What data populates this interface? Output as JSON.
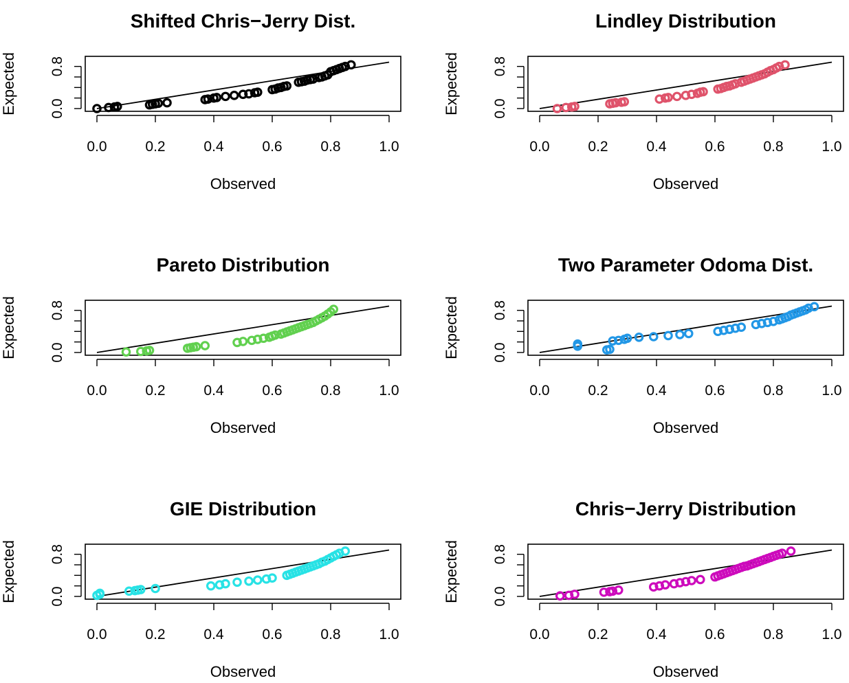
{
  "chart_data": [
    {
      "type": "scatter",
      "title": "Shifted Chris−Jerry Dist.",
      "xlabel": "Observed",
      "ylabel": "Expected",
      "xlim": [
        0.0,
        1.0
      ],
      "ylim": [
        0.0,
        0.9
      ],
      "xticks": [
        "0.0",
        "0.2",
        "0.4",
        "0.6",
        "0.8",
        "1.0"
      ],
      "yticks": [
        "0.0",
        "0.8"
      ],
      "grid": false,
      "color": "#000000",
      "reference_line": {
        "from": [
          0.0,
          0.0
        ],
        "to": [
          1.0,
          0.88
        ]
      },
      "series": [
        {
          "x": [
            0.0,
            0.04,
            0.06,
            0.07,
            0.18,
            0.19,
            0.2,
            0.21,
            0.24,
            0.37,
            0.38,
            0.4,
            0.41,
            0.44,
            0.47,
            0.5,
            0.52,
            0.54,
            0.55,
            0.6,
            0.61,
            0.62,
            0.63,
            0.64,
            0.65,
            0.69,
            0.7,
            0.71,
            0.72,
            0.73,
            0.74,
            0.76,
            0.77,
            0.78,
            0.79,
            0.8,
            0.81,
            0.82,
            0.83,
            0.84,
            0.85,
            0.87
          ],
          "y": [
            0.0,
            0.02,
            0.03,
            0.04,
            0.07,
            0.08,
            0.09,
            0.1,
            0.11,
            0.17,
            0.18,
            0.2,
            0.21,
            0.23,
            0.25,
            0.27,
            0.28,
            0.3,
            0.31,
            0.36,
            0.37,
            0.39,
            0.4,
            0.42,
            0.43,
            0.5,
            0.51,
            0.52,
            0.54,
            0.55,
            0.56,
            0.59,
            0.6,
            0.62,
            0.64,
            0.7,
            0.72,
            0.74,
            0.76,
            0.78,
            0.8,
            0.83
          ]
        }
      ]
    },
    {
      "type": "scatter",
      "title": "Lindley Distribution",
      "xlabel": "Observed",
      "ylabel": "Expected",
      "xlim": [
        0.0,
        1.0
      ],
      "ylim": [
        0.0,
        0.9
      ],
      "xticks": [
        "0.0",
        "0.2",
        "0.4",
        "0.6",
        "0.8",
        "1.0"
      ],
      "yticks": [
        "0.0",
        "0.8"
      ],
      "grid": false,
      "color": "#DF536B",
      "reference_line": {
        "from": [
          0.0,
          0.0
        ],
        "to": [
          1.0,
          0.88
        ]
      },
      "series": [
        {
          "x": [
            0.06,
            0.09,
            0.11,
            0.12,
            0.24,
            0.25,
            0.26,
            0.28,
            0.29,
            0.41,
            0.43,
            0.44,
            0.47,
            0.5,
            0.52,
            0.54,
            0.55,
            0.56,
            0.61,
            0.62,
            0.63,
            0.64,
            0.65,
            0.66,
            0.67,
            0.69,
            0.7,
            0.71,
            0.72,
            0.73,
            0.74,
            0.75,
            0.76,
            0.77,
            0.78,
            0.79,
            0.8,
            0.81,
            0.82,
            0.84
          ],
          "y": [
            0.0,
            0.02,
            0.03,
            0.04,
            0.09,
            0.1,
            0.11,
            0.12,
            0.13,
            0.18,
            0.2,
            0.21,
            0.23,
            0.25,
            0.27,
            0.29,
            0.31,
            0.32,
            0.37,
            0.38,
            0.4,
            0.42,
            0.43,
            0.45,
            0.47,
            0.5,
            0.52,
            0.54,
            0.56,
            0.58,
            0.6,
            0.62,
            0.64,
            0.66,
            0.69,
            0.72,
            0.74,
            0.77,
            0.8,
            0.83
          ]
        }
      ]
    },
    {
      "type": "scatter",
      "title": "Pareto Distribution",
      "xlabel": "Observed",
      "ylabel": "Expected",
      "xlim": [
        0.0,
        1.0
      ],
      "ylim": [
        0.0,
        0.9
      ],
      "xticks": [
        "0.0",
        "0.2",
        "0.4",
        "0.6",
        "0.8",
        "1.0"
      ],
      "yticks": [
        "0.0",
        "0.8"
      ],
      "grid": false,
      "color": "#61D04F",
      "reference_line": {
        "from": [
          0.0,
          0.0
        ],
        "to": [
          1.0,
          0.88
        ]
      },
      "series": [
        {
          "x": [
            0.1,
            0.15,
            0.17,
            0.18,
            0.31,
            0.32,
            0.33,
            0.34,
            0.37,
            0.48,
            0.5,
            0.53,
            0.55,
            0.57,
            0.59,
            0.6,
            0.61,
            0.63,
            0.64,
            0.65,
            0.66,
            0.67,
            0.68,
            0.69,
            0.7,
            0.71,
            0.72,
            0.73,
            0.74,
            0.75,
            0.76,
            0.77,
            0.78,
            0.79,
            0.8,
            0.81
          ],
          "y": [
            0.01,
            0.02,
            0.03,
            0.04,
            0.08,
            0.09,
            0.1,
            0.11,
            0.13,
            0.19,
            0.21,
            0.23,
            0.25,
            0.27,
            0.29,
            0.31,
            0.33,
            0.35,
            0.37,
            0.39,
            0.41,
            0.43,
            0.45,
            0.47,
            0.49,
            0.51,
            0.53,
            0.55,
            0.57,
            0.6,
            0.63,
            0.66,
            0.69,
            0.73,
            0.77,
            0.82
          ]
        }
      ]
    },
    {
      "type": "scatter",
      "title": "Two Parameter Odoma Dist.",
      "xlabel": "Observed",
      "ylabel": "Expected",
      "xlim": [
        0.0,
        1.0
      ],
      "ylim": [
        0.0,
        0.9
      ],
      "xticks": [
        "0.0",
        "0.2",
        "0.4",
        "0.6",
        "0.8",
        "1.0"
      ],
      "yticks": [
        "0.0",
        "0.8"
      ],
      "grid": false,
      "color": "#2297E6",
      "reference_line": {
        "from": [
          0.0,
          0.0
        ],
        "to": [
          1.0,
          0.88
        ]
      },
      "series": [
        {
          "x": [
            0.13,
            0.13,
            0.13,
            0.23,
            0.24,
            0.25,
            0.27,
            0.29,
            0.3,
            0.34,
            0.39,
            0.44,
            0.48,
            0.51,
            0.61,
            0.63,
            0.65,
            0.67,
            0.69,
            0.74,
            0.76,
            0.78,
            0.8,
            0.82,
            0.83,
            0.84,
            0.85,
            0.86,
            0.87,
            0.88,
            0.89,
            0.9,
            0.91,
            0.92,
            0.94
          ],
          "y": [
            0.12,
            0.14,
            0.16,
            0.05,
            0.06,
            0.22,
            0.23,
            0.25,
            0.27,
            0.29,
            0.3,
            0.32,
            0.34,
            0.36,
            0.4,
            0.42,
            0.44,
            0.46,
            0.48,
            0.53,
            0.55,
            0.57,
            0.59,
            0.62,
            0.64,
            0.66,
            0.68,
            0.71,
            0.73,
            0.75,
            0.77,
            0.79,
            0.81,
            0.84,
            0.87
          ]
        }
      ]
    },
    {
      "type": "scatter",
      "title": "GIE Distribution",
      "xlabel": "Observed",
      "ylabel": "Expected",
      "xlim": [
        0.0,
        1.0
      ],
      "ylim": [
        0.0,
        0.9
      ],
      "xticks": [
        "0.0",
        "0.2",
        "0.4",
        "0.6",
        "0.8",
        "1.0"
      ],
      "yticks": [
        "0.0",
        "0.8"
      ],
      "grid": false,
      "color": "#28E2E5",
      "reference_line": {
        "from": [
          0.0,
          0.0
        ],
        "to": [
          1.0,
          0.88
        ]
      },
      "series": [
        {
          "x": [
            0.0,
            0.01,
            0.01,
            0.11,
            0.13,
            0.14,
            0.15,
            0.2,
            0.39,
            0.42,
            0.44,
            0.48,
            0.52,
            0.55,
            0.58,
            0.6,
            0.65,
            0.66,
            0.67,
            0.68,
            0.69,
            0.7,
            0.71,
            0.72,
            0.73,
            0.74,
            0.75,
            0.76,
            0.77,
            0.78,
            0.79,
            0.8,
            0.81,
            0.82,
            0.83,
            0.85
          ],
          "y": [
            0.02,
            0.04,
            0.06,
            0.1,
            0.11,
            0.12,
            0.13,
            0.15,
            0.2,
            0.22,
            0.24,
            0.27,
            0.29,
            0.31,
            0.33,
            0.35,
            0.4,
            0.42,
            0.44,
            0.46,
            0.48,
            0.5,
            0.52,
            0.54,
            0.56,
            0.58,
            0.6,
            0.62,
            0.65,
            0.67,
            0.7,
            0.73,
            0.76,
            0.79,
            0.82,
            0.86
          ]
        }
      ]
    },
    {
      "type": "scatter",
      "title": "Chris−Jerry Distribution",
      "xlabel": "Observed",
      "ylabel": "Expected",
      "xlim": [
        0.0,
        1.0
      ],
      "ylim": [
        0.0,
        0.9
      ],
      "xticks": [
        "0.0",
        "0.2",
        "0.4",
        "0.6",
        "0.8",
        "1.0"
      ],
      "yticks": [
        "0.0",
        "0.8"
      ],
      "grid": false,
      "color": "#CD0BBC",
      "reference_line": {
        "from": [
          0.0,
          0.0
        ],
        "to": [
          1.0,
          0.88
        ]
      },
      "series": [
        {
          "x": [
            0.07,
            0.1,
            0.12,
            0.22,
            0.24,
            0.25,
            0.27,
            0.39,
            0.41,
            0.43,
            0.46,
            0.48,
            0.5,
            0.52,
            0.55,
            0.6,
            0.61,
            0.62,
            0.63,
            0.64,
            0.65,
            0.66,
            0.67,
            0.68,
            0.69,
            0.7,
            0.71,
            0.72,
            0.73,
            0.74,
            0.75,
            0.76,
            0.77,
            0.78,
            0.79,
            0.8,
            0.81,
            0.82,
            0.83,
            0.86
          ],
          "y": [
            0.01,
            0.02,
            0.04,
            0.08,
            0.09,
            0.1,
            0.12,
            0.18,
            0.2,
            0.22,
            0.24,
            0.26,
            0.28,
            0.3,
            0.32,
            0.37,
            0.39,
            0.41,
            0.43,
            0.45,
            0.47,
            0.49,
            0.51,
            0.53,
            0.55,
            0.57,
            0.58,
            0.6,
            0.62,
            0.64,
            0.66,
            0.68,
            0.7,
            0.72,
            0.74,
            0.76,
            0.78,
            0.8,
            0.82,
            0.86
          ]
        }
      ]
    }
  ]
}
